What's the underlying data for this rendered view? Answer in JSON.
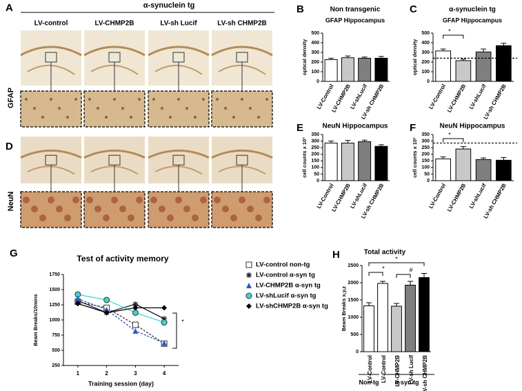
{
  "micrographs": {
    "panels": [
      "A",
      "D"
    ],
    "header": "α-synuclein tg",
    "columns": [
      "LV-control",
      "LV-CHMP2B",
      "LV-sh Lucif",
      "LV-sh CHMP2B"
    ],
    "rows": [
      "GFAP",
      "NeuN"
    ]
  },
  "chart_data": [
    {
      "type": "bar",
      "panel": "B",
      "title": "Non transgenic",
      "subtitle": "GFAP Hippocampus",
      "ylabel": "optical density",
      "categories": [
        "LV-Control",
        "LV-CHMP2B",
        "LV-shLucif",
        "LV-sh CHMP2B"
      ],
      "values": [
        225,
        245,
        240,
        240
      ],
      "errors": [
        15,
        18,
        12,
        18
      ],
      "colors": [
        "#ffffff",
        "#c8c8c8",
        "#7f7f7f",
        "#000000"
      ],
      "ylim": [
        0,
        500
      ],
      "yticks": [
        0,
        100,
        200,
        300,
        400,
        500
      ]
    },
    {
      "type": "bar",
      "panel": "C",
      "title": "α-synuclein tg",
      "subtitle": "GFAP Hippocampus",
      "ylabel": "optical density",
      "categories": [
        "LV-Control",
        "LV-CHMP2B",
        "LV-shLucif",
        "LV-sh CHMP2B"
      ],
      "values": [
        315,
        215,
        305,
        370
      ],
      "errors": [
        20,
        15,
        30,
        25
      ],
      "colors": [
        "#ffffff",
        "#c8c8c8",
        "#7f7f7f",
        "#000000"
      ],
      "ylim": [
        0,
        500
      ],
      "yticks": [
        0,
        100,
        200,
        300,
        400,
        500
      ],
      "reference_line": 240,
      "annotations": [
        "*"
      ]
    },
    {
      "type": "bar",
      "panel": "E",
      "title": "NeuN Hippocampus",
      "ylabel": "cell counts x 10³",
      "categories": [
        "LV-Control",
        "LV-CHMP2B",
        "LV-shLucif",
        "LV-sh CHMP2B"
      ],
      "values": [
        285,
        285,
        295,
        260
      ],
      "errors": [
        15,
        20,
        12,
        12
      ],
      "colors": [
        "#ffffff",
        "#c8c8c8",
        "#7f7f7f",
        "#000000"
      ],
      "ylim": [
        0,
        350
      ],
      "yticks": [
        0,
        50,
        100,
        150,
        200,
        250,
        300,
        350
      ]
    },
    {
      "type": "bar",
      "panel": "F",
      "title": "NeuN Hippocampus",
      "ylabel": "cell counts x 10³",
      "categories": [
        "LV-Control",
        "LV-CHMP2B",
        "LV-shLucif",
        "LV-sh CHMP2B"
      ],
      "values": [
        165,
        240,
        160,
        155
      ],
      "errors": [
        15,
        18,
        12,
        20
      ],
      "colors": [
        "#ffffff",
        "#c8c8c8",
        "#7f7f7f",
        "#000000"
      ],
      "ylim": [
        0,
        350
      ],
      "yticks": [
        0,
        50,
        100,
        150,
        200,
        250,
        300,
        350
      ],
      "reference_line": 285,
      "annotations": [
        "*"
      ]
    },
    {
      "type": "line",
      "panel": "G",
      "title": "Test of activity memory",
      "xlabel": "Training session (day)",
      "ylabel": "Beam Breaks/10mins",
      "x": [
        1,
        2,
        3,
        4
      ],
      "xlim": [
        0.5,
        4.5
      ],
      "xticks": [
        1,
        2,
        3,
        4
      ],
      "ylim": [
        250,
        1750
      ],
      "yticks": [
        250,
        500,
        750,
        1000,
        1250,
        1500,
        1750
      ],
      "series": [
        {
          "name": "LV-control non-tg",
          "color": "#333333",
          "marker": "square",
          "dashed": true,
          "values": [
            1300,
            1200,
            920,
            610
          ]
        },
        {
          "name": "LV-control α-syn tg",
          "color": "#222222",
          "marker": "star",
          "dashed": false,
          "values": [
            1320,
            1120,
            1260,
            1020
          ]
        },
        {
          "name": "LV-CHMP2B α-syn tg",
          "color": "#2f56c8",
          "marker": "triangle",
          "dashed": true,
          "values": [
            1350,
            1170,
            820,
            620
          ]
        },
        {
          "name": "LV-shLucif α-syn tg",
          "color": "#3fd3d3",
          "marker": "circle",
          "dashed": false,
          "values": [
            1420,
            1330,
            1120,
            960
          ]
        },
        {
          "name": "LV-shCHMP2B α-syn tg",
          "color": "#000000",
          "marker": "diamond",
          "dashed": false,
          "values": [
            1270,
            1120,
            1200,
            1200
          ]
        }
      ],
      "annotations": [
        "*"
      ]
    },
    {
      "type": "bar",
      "panel": "H",
      "title": "Total activity",
      "ylabel": "Beam Breaks x,y,z",
      "categories": [
        "LV-Control",
        "LV-Control",
        "LV-CHMP2B",
        "LV-sh Lucif",
        "LV-sh CHMP2B"
      ],
      "values": [
        1330,
        1980,
        1320,
        1930,
        2150
      ],
      "errors": [
        90,
        60,
        80,
        110,
        120
      ],
      "colors": [
        "#ffffff",
        "#ffffff",
        "#c8c8c8",
        "#7f7f7f",
        "#000000"
      ],
      "ylim": [
        0,
        2500
      ],
      "yticks": [
        0,
        500,
        1000,
        1500,
        2000,
        2500
      ],
      "groups": [
        "Non-tg",
        "α-syn tg"
      ],
      "annotations": [
        "*",
        "*",
        "#"
      ]
    }
  ]
}
